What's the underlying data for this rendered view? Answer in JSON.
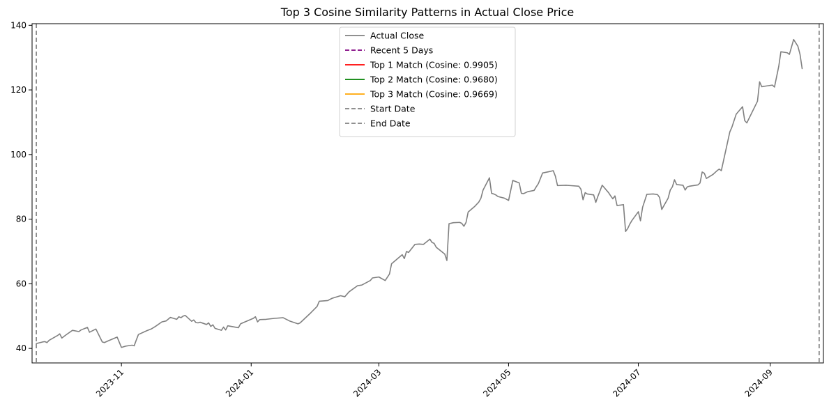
{
  "chart_data": {
    "type": "line",
    "title": "Top 3 Cosine Similarity Patterns in Actual Close Price",
    "xlabel": "",
    "ylabel": "",
    "xlim": [
      "2023-09-20",
      "2024-09-26"
    ],
    "ylim": [
      35.5,
      140.5
    ],
    "x_tick_labels": [
      "2023-11",
      "2024-01",
      "2024-03",
      "2024-05",
      "2024-07",
      "2024-09"
    ],
    "x_tick_dates": [
      "2023-11-01",
      "2024-01-01",
      "2024-03-01",
      "2024-05-01",
      "2024-07-01",
      "2024-09-01"
    ],
    "y_ticks": [
      40,
      60,
      80,
      100,
      120,
      140
    ],
    "grid": false,
    "legend_position": "top-center",
    "series": [
      {
        "name": "Actual Close",
        "color": "#808080",
        "style": "solid",
        "points": [
          [
            "2023-09-22",
            41.5
          ],
          [
            "2023-09-25",
            42.0
          ],
          [
            "2023-09-26",
            42.1
          ],
          [
            "2023-09-27",
            41.8
          ],
          [
            "2023-09-28",
            42.5
          ],
          [
            "2023-10-02",
            44.0
          ],
          [
            "2023-10-03",
            44.5
          ],
          [
            "2023-10-04",
            43.2
          ],
          [
            "2023-10-06",
            44.2
          ],
          [
            "2023-10-09",
            45.6
          ],
          [
            "2023-10-12",
            45.2
          ],
          [
            "2023-10-13",
            45.7
          ],
          [
            "2023-10-16",
            46.5
          ],
          [
            "2023-10-17",
            45.0
          ],
          [
            "2023-10-20",
            46.0
          ],
          [
            "2023-10-23",
            42.0
          ],
          [
            "2023-10-24",
            41.8
          ],
          [
            "2023-10-26",
            42.4
          ],
          [
            "2023-10-30",
            43.5
          ],
          [
            "2023-11-01",
            40.3
          ],
          [
            "2023-11-03",
            40.7
          ],
          [
            "2023-11-06",
            41.0
          ],
          [
            "2023-11-07",
            40.8
          ],
          [
            "2023-11-08",
            42.6
          ],
          [
            "2023-11-09",
            44.3
          ],
          [
            "2023-11-13",
            45.5
          ],
          [
            "2023-11-15",
            46.0
          ],
          [
            "2023-11-17",
            46.8
          ],
          [
            "2023-11-20",
            48.2
          ],
          [
            "2023-11-22",
            48.5
          ],
          [
            "2023-11-24",
            49.6
          ],
          [
            "2023-11-27",
            49.0
          ],
          [
            "2023-11-28",
            49.8
          ],
          [
            "2023-11-29",
            49.5
          ],
          [
            "2023-11-30",
            50.0
          ],
          [
            "2023-12-01",
            50.2
          ],
          [
            "2023-12-04",
            48.4
          ],
          [
            "2023-12-05",
            48.8
          ],
          [
            "2023-12-06",
            48.0
          ],
          [
            "2023-12-07",
            47.9
          ],
          [
            "2023-12-08",
            48.1
          ],
          [
            "2023-12-11",
            47.4
          ],
          [
            "2023-12-12",
            47.9
          ],
          [
            "2023-12-13",
            46.8
          ],
          [
            "2023-12-14",
            47.3
          ],
          [
            "2023-12-15",
            46.2
          ],
          [
            "2023-12-18",
            45.6
          ],
          [
            "2023-12-19",
            46.6
          ],
          [
            "2023-12-20",
            45.7
          ],
          [
            "2023-12-21",
            47.0
          ],
          [
            "2023-12-26",
            46.4
          ],
          [
            "2023-12-27",
            47.6
          ],
          [
            "2023-12-28",
            47.9
          ],
          [
            "2024-01-02",
            49.3
          ],
          [
            "2024-01-03",
            49.8
          ],
          [
            "2024-01-04",
            48.2
          ],
          [
            "2024-01-05",
            48.9
          ],
          [
            "2024-01-08",
            49.0
          ],
          [
            "2024-01-12",
            49.3
          ],
          [
            "2024-01-16",
            49.5
          ],
          [
            "2024-01-19",
            48.5
          ],
          [
            "2024-01-23",
            47.6
          ],
          [
            "2024-01-24",
            47.9
          ],
          [
            "2024-01-29",
            51.0
          ],
          [
            "2024-02-01",
            53.0
          ],
          [
            "2024-02-02",
            54.6
          ],
          [
            "2024-02-06",
            54.8
          ],
          [
            "2024-02-08",
            55.5
          ],
          [
            "2024-02-12",
            56.3
          ],
          [
            "2024-02-14",
            56.0
          ],
          [
            "2024-02-16",
            57.5
          ],
          [
            "2024-02-20",
            59.4
          ],
          [
            "2024-02-22",
            59.6
          ],
          [
            "2024-02-26",
            61.0
          ],
          [
            "2024-02-27",
            61.8
          ],
          [
            "2024-03-01",
            62.1
          ],
          [
            "2024-03-04",
            61.0
          ],
          [
            "2024-03-06",
            63.0
          ],
          [
            "2024-03-07",
            66.2
          ],
          [
            "2024-03-12",
            69.0
          ],
          [
            "2024-03-13",
            67.8
          ],
          [
            "2024-03-14",
            70.0
          ],
          [
            "2024-03-15",
            69.7
          ],
          [
            "2024-03-18",
            72.2
          ],
          [
            "2024-03-20",
            72.3
          ],
          [
            "2024-03-22",
            72.2
          ],
          [
            "2024-03-25",
            73.8
          ],
          [
            "2024-03-26",
            72.8
          ],
          [
            "2024-03-27",
            72.5
          ],
          [
            "2024-03-28",
            71.3
          ],
          [
            "2024-04-01",
            69.2
          ],
          [
            "2024-04-02",
            67.2
          ],
          [
            "2024-04-03",
            78.6
          ],
          [
            "2024-04-05",
            78.9
          ],
          [
            "2024-04-08",
            79.0
          ],
          [
            "2024-04-09",
            78.7
          ],
          [
            "2024-04-10",
            77.8
          ],
          [
            "2024-04-11",
            79.0
          ],
          [
            "2024-04-12",
            82.2
          ],
          [
            "2024-04-15",
            83.9
          ],
          [
            "2024-04-17",
            85.3
          ],
          [
            "2024-04-18",
            86.5
          ],
          [
            "2024-04-19",
            89.0
          ],
          [
            "2024-04-22",
            92.8
          ],
          [
            "2024-04-23",
            88.0
          ],
          [
            "2024-04-24",
            87.8
          ],
          [
            "2024-04-25",
            87.5
          ],
          [
            "2024-04-26",
            87.0
          ],
          [
            "2024-04-29",
            86.5
          ],
          [
            "2024-05-01",
            85.8
          ],
          [
            "2024-05-03",
            92.0
          ],
          [
            "2024-05-06",
            91.2
          ],
          [
            "2024-05-07",
            88.0
          ],
          [
            "2024-05-08",
            87.9
          ],
          [
            "2024-05-10",
            88.5
          ],
          [
            "2024-05-13",
            88.9
          ],
          [
            "2024-05-14",
            90.0
          ],
          [
            "2024-05-15",
            91.0
          ],
          [
            "2024-05-17",
            94.3
          ],
          [
            "2024-05-20",
            94.7
          ],
          [
            "2024-05-22",
            95.0
          ],
          [
            "2024-05-23",
            93.3
          ],
          [
            "2024-05-24",
            90.4
          ],
          [
            "2024-05-28",
            90.5
          ],
          [
            "2024-05-30",
            90.4
          ],
          [
            "2024-06-03",
            90.2
          ],
          [
            "2024-06-04",
            89.3
          ],
          [
            "2024-06-05",
            86.0
          ],
          [
            "2024-06-06",
            88.2
          ],
          [
            "2024-06-07",
            87.8
          ],
          [
            "2024-06-10",
            87.5
          ],
          [
            "2024-06-11",
            85.2
          ],
          [
            "2024-06-12",
            87.1
          ],
          [
            "2024-06-14",
            90.5
          ],
          [
            "2024-06-17",
            88.2
          ],
          [
            "2024-06-18",
            87.2
          ],
          [
            "2024-06-19",
            86.3
          ],
          [
            "2024-06-20",
            87.2
          ],
          [
            "2024-06-21",
            84.2
          ],
          [
            "2024-06-24",
            84.5
          ],
          [
            "2024-06-25",
            76.2
          ],
          [
            "2024-06-26",
            77.1
          ],
          [
            "2024-06-27",
            78.5
          ],
          [
            "2024-06-28",
            79.6
          ],
          [
            "2024-07-01",
            82.3
          ],
          [
            "2024-07-02",
            79.5
          ],
          [
            "2024-07-03",
            83.7
          ],
          [
            "2024-07-05",
            87.7
          ],
          [
            "2024-07-08",
            87.8
          ],
          [
            "2024-07-10",
            87.6
          ],
          [
            "2024-07-11",
            86.7
          ],
          [
            "2024-07-12",
            83.0
          ],
          [
            "2024-07-15",
            86.5
          ],
          [
            "2024-07-16",
            89.0
          ],
          [
            "2024-07-17",
            90.0
          ],
          [
            "2024-07-18",
            92.2
          ],
          [
            "2024-07-19",
            90.7
          ],
          [
            "2024-07-22",
            90.5
          ],
          [
            "2024-07-23",
            89.0
          ],
          [
            "2024-07-24",
            90.0
          ],
          [
            "2024-07-25",
            90.2
          ],
          [
            "2024-07-29",
            90.6
          ],
          [
            "2024-07-30",
            91.2
          ],
          [
            "2024-07-31",
            94.6
          ],
          [
            "2024-08-01",
            94.2
          ],
          [
            "2024-08-02",
            92.6
          ],
          [
            "2024-08-05",
            93.8
          ],
          [
            "2024-08-07",
            95.0
          ],
          [
            "2024-08-08",
            95.5
          ],
          [
            "2024-08-09",
            95.0
          ],
          [
            "2024-08-12",
            104.0
          ],
          [
            "2024-08-13",
            107.0
          ],
          [
            "2024-08-14",
            108.5
          ],
          [
            "2024-08-15",
            110.5
          ],
          [
            "2024-08-16",
            112.5
          ],
          [
            "2024-08-19",
            114.8
          ],
          [
            "2024-08-20",
            110.5
          ],
          [
            "2024-08-21",
            109.8
          ],
          [
            "2024-08-26",
            116.5
          ],
          [
            "2024-08-27",
            122.5
          ],
          [
            "2024-08-28",
            121.0
          ],
          [
            "2024-08-30",
            121.2
          ],
          [
            "2024-09-02",
            121.5
          ],
          [
            "2024-09-03",
            120.9
          ],
          [
            "2024-09-05",
            127.3
          ],
          [
            "2024-09-06",
            131.8
          ],
          [
            "2024-09-09",
            131.5
          ],
          [
            "2024-09-10",
            131.0
          ],
          [
            "2024-09-12",
            135.6
          ],
          [
            "2024-09-14",
            133.5
          ],
          [
            "2024-09-15",
            131.0
          ],
          [
            "2024-09-16",
            126.6
          ]
        ]
      }
    ],
    "x_mapping_note": "",
    "annotations": []
  },
  "legend": [
    {
      "label": "Actual Close",
      "color": "#808080",
      "style": "solid"
    },
    {
      "label": "Recent 5 Days",
      "color": "#800080",
      "style": "dashed"
    },
    {
      "label": "Top 1 Match (Cosine: 0.9905)",
      "color": "#ff0000",
      "style": "solid"
    },
    {
      "label": "Top 2 Match (Cosine: 0.9680)",
      "color": "#008000",
      "style": "solid"
    },
    {
      "label": "Top 3 Match (Cosine: 0.9669)",
      "color": "#ffa500",
      "style": "solid"
    },
    {
      "label": "Start Date",
      "color": "#808080",
      "style": "dashed"
    },
    {
      "label": "End Date",
      "color": "#808080",
      "style": "dashed"
    }
  ]
}
